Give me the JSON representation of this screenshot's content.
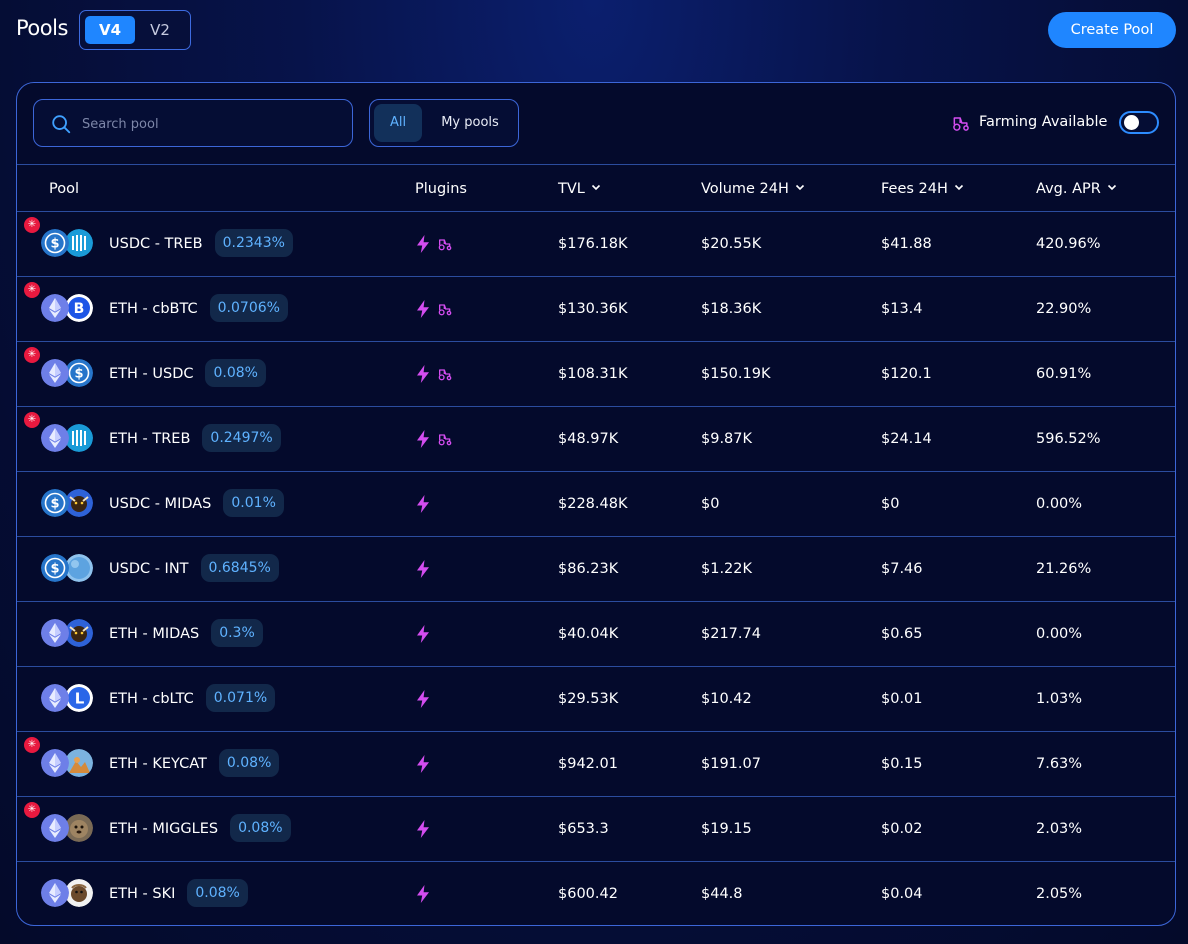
{
  "header": {
    "title": "Pools",
    "versions": [
      "V4",
      "V2"
    ],
    "active_version": "V4",
    "create_pool_label": "Create Pool"
  },
  "toolbar": {
    "search_placeholder": "Search pool",
    "filters": [
      "All",
      "My pools"
    ],
    "active_filter": "All",
    "farming_label": "Farming Available",
    "farming_enabled": false
  },
  "colors": {
    "accent": "#1f86ff",
    "border": "#3c66d8",
    "plugin": "#d44df0",
    "danger": "#e8193f"
  },
  "table": {
    "columns": [
      "Pool",
      "Plugins",
      "TVL",
      "Volume 24H",
      "Fees 24H",
      "Avg. APR"
    ],
    "rows": [
      {
        "pair": "USDC - TREB",
        "fee": "0.2343%",
        "tokens": [
          "usdc-icon",
          "treb-icon"
        ],
        "alert": true,
        "plugins": [
          "bolt-icon",
          "tractor-icon"
        ],
        "tvl": "$176.18K",
        "volume": "$20.55K",
        "fees": "$41.88",
        "apr": "420.96%"
      },
      {
        "pair": "ETH - cbBTC",
        "fee": "0.0706%",
        "tokens": [
          "eth-icon",
          "btc-icon"
        ],
        "alert": true,
        "plugins": [
          "bolt-icon",
          "tractor-icon"
        ],
        "tvl": "$130.36K",
        "volume": "$18.36K",
        "fees": "$13.4",
        "apr": "22.90%"
      },
      {
        "pair": "ETH - USDC",
        "fee": "0.08%",
        "tokens": [
          "eth-icon",
          "usdc-icon"
        ],
        "alert": true,
        "plugins": [
          "bolt-icon",
          "tractor-icon"
        ],
        "tvl": "$108.31K",
        "volume": "$150.19K",
        "fees": "$120.1",
        "apr": "60.91%"
      },
      {
        "pair": "ETH - TREB",
        "fee": "0.2497%",
        "tokens": [
          "eth-icon",
          "treb-icon"
        ],
        "alert": true,
        "plugins": [
          "bolt-icon",
          "tractor-icon"
        ],
        "tvl": "$48.97K",
        "volume": "$9.87K",
        "fees": "$24.14",
        "apr": "596.52%"
      },
      {
        "pair": "USDC - MIDAS",
        "fee": "0.01%",
        "tokens": [
          "usdc-icon",
          "midas-icon"
        ],
        "alert": false,
        "plugins": [
          "bolt-icon"
        ],
        "tvl": "$228.48K",
        "volume": "$0",
        "fees": "$0",
        "apr": "0.00%"
      },
      {
        "pair": "USDC - INT",
        "fee": "0.6845%",
        "tokens": [
          "usdc-icon",
          "int-icon"
        ],
        "alert": false,
        "plugins": [
          "bolt-icon"
        ],
        "tvl": "$86.23K",
        "volume": "$1.22K",
        "fees": "$7.46",
        "apr": "21.26%"
      },
      {
        "pair": "ETH - MIDAS",
        "fee": "0.3%",
        "tokens": [
          "eth-icon",
          "midas-icon"
        ],
        "alert": false,
        "plugins": [
          "bolt-icon"
        ],
        "tvl": "$40.04K",
        "volume": "$217.74",
        "fees": "$0.65",
        "apr": "0.00%"
      },
      {
        "pair": "ETH - cbLTC",
        "fee": "0.071%",
        "tokens": [
          "eth-icon",
          "ltc-icon"
        ],
        "alert": false,
        "plugins": [
          "bolt-icon"
        ],
        "tvl": "$29.53K",
        "volume": "$10.42",
        "fees": "$0.01",
        "apr": "1.03%"
      },
      {
        "pair": "ETH - KEYCAT",
        "fee": "0.08%",
        "tokens": [
          "eth-icon",
          "keycat-icon"
        ],
        "alert": true,
        "plugins": [
          "bolt-icon"
        ],
        "tvl": "$942.01",
        "volume": "$191.07",
        "fees": "$0.15",
        "apr": "7.63%"
      },
      {
        "pair": "ETH - MIGGLES",
        "fee": "0.08%",
        "tokens": [
          "eth-icon",
          "miggles-icon"
        ],
        "alert": true,
        "plugins": [
          "bolt-icon"
        ],
        "tvl": "$653.3",
        "volume": "$19.15",
        "fees": "$0.02",
        "apr": "2.03%"
      },
      {
        "pair": "ETH - SKI",
        "fee": "0.08%",
        "tokens": [
          "eth-icon",
          "ski-icon"
        ],
        "alert": false,
        "plugins": [
          "bolt-icon"
        ],
        "tvl": "$600.42",
        "volume": "$44.8",
        "fees": "$0.04",
        "apr": "2.05%"
      }
    ]
  }
}
